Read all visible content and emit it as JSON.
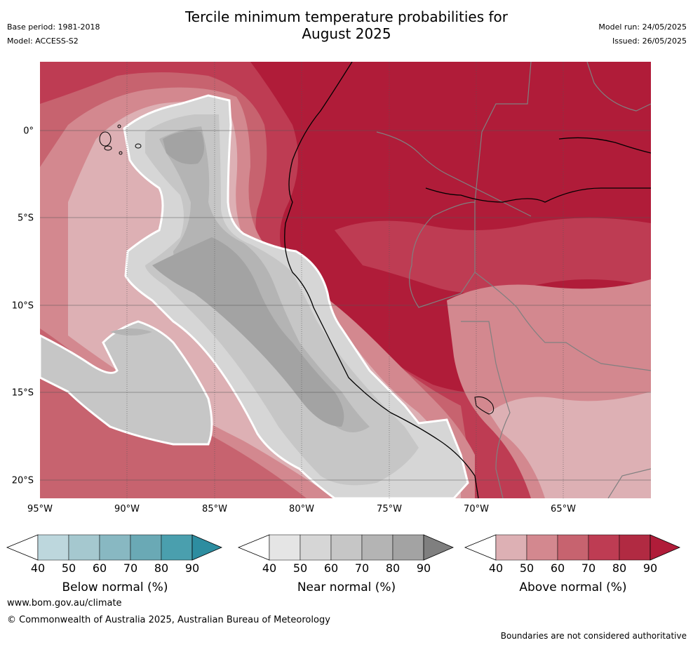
{
  "header": {
    "title_line1": "Tercile minimum temperature probabilities for",
    "title_line2": "August 2025",
    "base_period": "Base period: 1981-2018",
    "model": "Model: ACCESS-S2",
    "model_run": "Model run: 24/05/2025",
    "issued": "Issued: 26/05/2025"
  },
  "map": {
    "latitude_labels": [
      "0°",
      "5°S",
      "10°S",
      "15°S",
      "20°S"
    ],
    "longitude_labels": [
      "95°W",
      "90°W",
      "85°W",
      "80°W",
      "75°W",
      "70°W",
      "65°W"
    ],
    "extent": {
      "lon": [
        -95,
        -60
      ],
      "lat": [
        -21,
        4
      ]
    },
    "colors": {
      "above_90": "#b01c39",
      "above_80": "#be3c53",
      "above_70": "#c7636f",
      "above_60": "#d3888f",
      "above_50": "#ddb0b4",
      "near_40": "#d6d6d6",
      "near_50": "#c6c6c6",
      "near_60": "#b4b4b4",
      "near_70": "#a3a3a3",
      "coast": "#000000",
      "border": "#808080"
    }
  },
  "colorbars": [
    {
      "title": "Below normal (%)",
      "ticks": [
        "40",
        "50",
        "60",
        "70",
        "80",
        "90"
      ],
      "colors": [
        "#bdd7dd",
        "#a5c8cf",
        "#88b8c2",
        "#6aa9b5",
        "#4a9fae",
        "#2d8da0"
      ]
    },
    {
      "title": "Near normal (%)",
      "ticks": [
        "40",
        "50",
        "60",
        "70",
        "80",
        "90"
      ],
      "colors": [
        "#e5e5e5",
        "#d6d6d6",
        "#c6c6c6",
        "#b4b4b4",
        "#a3a3a3",
        "#7f7f7f"
      ]
    },
    {
      "title": "Above normal (%)",
      "ticks": [
        "40",
        "50",
        "60",
        "70",
        "80",
        "90"
      ],
      "colors": [
        "#ddb0b4",
        "#d3888f",
        "#c7636f",
        "#be3c53",
        "#b12a42",
        "#b01c39"
      ]
    }
  ],
  "footer": {
    "url": "www.bom.gov.au/climate",
    "copyright": "© Commonwealth of Australia 2025, Australian Bureau of Meteorology",
    "disclaimer": "Boundaries are not considered authoritative"
  }
}
